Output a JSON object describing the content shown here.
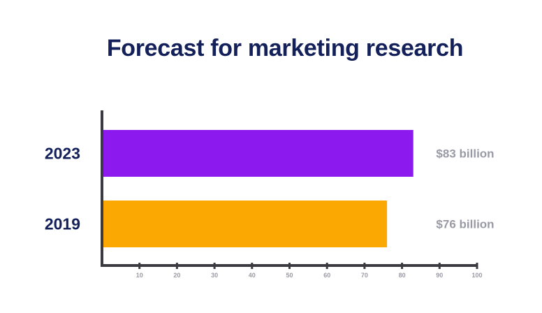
{
  "chart_data": {
    "type": "bar",
    "orientation": "horizontal",
    "title": "Forecast for marketing research",
    "categories": [
      "2023",
      "2019"
    ],
    "values": [
      83,
      76
    ],
    "data_labels": [
      "$83 billion",
      "$76 billion"
    ],
    "colors": [
      "#8c1aef",
      "#fba803"
    ],
    "xlim": [
      0,
      100
    ],
    "xticks": [
      10,
      20,
      30,
      40,
      50,
      60,
      70,
      80,
      90,
      100
    ],
    "xlabel": "",
    "ylabel": "",
    "grid": false,
    "legend": "none"
  },
  "colors": {
    "title": "#13205a",
    "axis": "#3a3a40",
    "label": "#9a9aa5"
  }
}
